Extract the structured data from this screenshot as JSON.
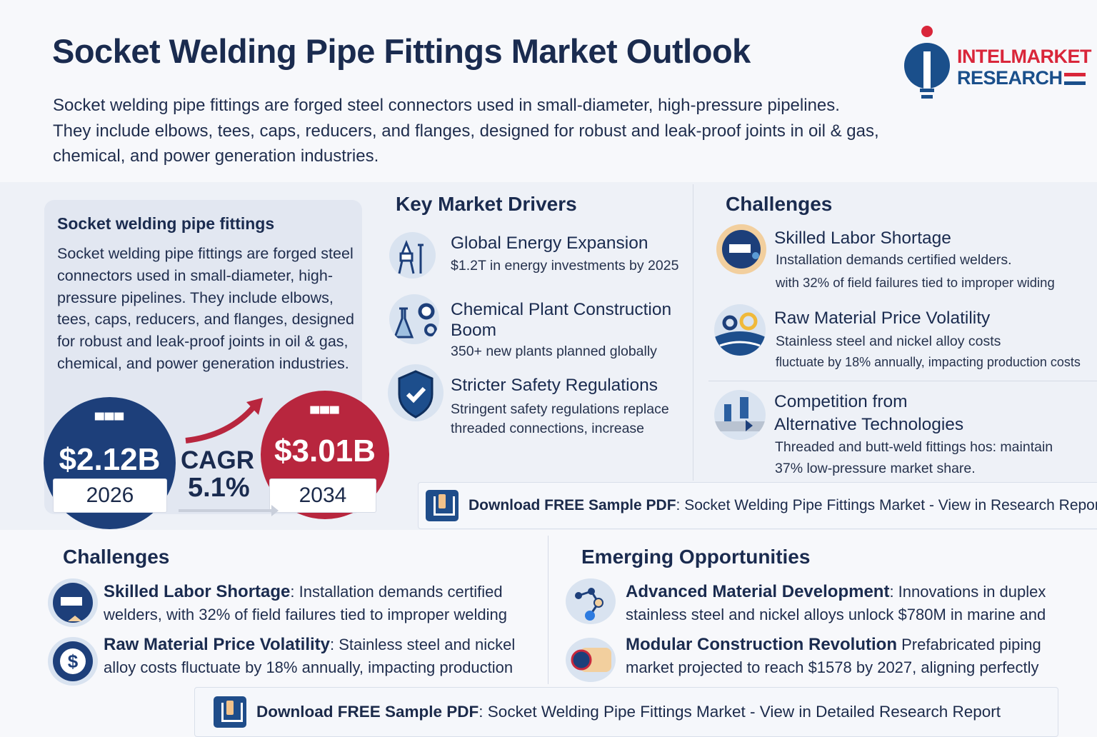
{
  "header": {
    "title": "Socket Welding Pipe Fittings Market Outlook",
    "description": "Socket welding pipe fittings are forged steel connectors used in small-diameter, high-pressure pipelines. They include elbows, tees, caps, reducers, and flanges, designed for robust and leak-proof joints in oil & gas, chemical, and power generation industries."
  },
  "logo": {
    "line1": "INTELMARKET",
    "line2": "RESEARCH",
    "colors": {
      "blue": "#1a4f8b",
      "red": "#d9263a"
    }
  },
  "summary_card": {
    "title": "Socket welding pipe fittings",
    "text": "Socket welding pipe fittings are forged steel connectors used in small-diameter, high-pressure pipelines. They include elbows, tees, caps, reducers, and flanges, designed for robust and leak-proof joints in oil & gas, chemical, and power generation industries."
  },
  "market_size": {
    "start": {
      "value": "$2.12B",
      "year": "2026",
      "color": "#1d3f7a"
    },
    "end": {
      "value": "$3.01B",
      "year": "2034",
      "color": "#b8263e"
    },
    "cagr_label": "CAGR",
    "cagr_value": "5.1%"
  },
  "drivers": {
    "heading": "Key Market Drivers",
    "items": [
      {
        "icon": "oil-rig-icon",
        "title": "Global Energy Expansion",
        "desc": "$1.2T in energy investments by 2025"
      },
      {
        "icon": "chemical-flask-gears-icon",
        "title": "Chemical Plant Construction Boom",
        "desc": "350+ new plants planned globally"
      },
      {
        "icon": "shield-check-icon",
        "title": "Stricter Safety Regulations",
        "desc1": "Stringent safety regulations replace",
        "desc2": "threaded connections, increase"
      }
    ]
  },
  "challenges_top": {
    "heading": "Challenges",
    "items": [
      {
        "icon": "welder-mask-icon",
        "title": "Skilled Labor Shortage",
        "desc1": "Installation demands certified welders.",
        "desc2": "with 32% of field failures tied to improper widing"
      },
      {
        "icon": "price-volatility-icon",
        "title": "Raw Material Price Volatility",
        "desc1": "Stainless steel and nickel alloy costs",
        "desc2": "fluctuate by 18% annually, impacting production costs"
      },
      {
        "icon": "pipes-icon",
        "title1": "Competition from",
        "title2": "Alternative Technologies",
        "desc1": "Threaded and butt-weld fittings hos: maintain",
        "desc2": "37% low-pressure market share."
      }
    ]
  },
  "download_top": {
    "bold": "Download FREE Sample PDF",
    "rest": ": Socket Welding Pipe Fittings Market - View in Research Report"
  },
  "challenges_bottom": {
    "heading": "Challenges",
    "items": [
      {
        "icon": "welder-mask-icon",
        "title": "Skilled Labor Shortage",
        "desc": ": Installation demands certified welders, with 32% of field failures tied to improper welding"
      },
      {
        "icon": "dollar-cycle-icon",
        "title": "Raw Material Price Volatility",
        "desc": ": Stainless steel and nickel alloy costs fluctuate by 18% annually, impacting production"
      }
    ]
  },
  "opportunities": {
    "heading": "Emerging Opportunities",
    "items": [
      {
        "icon": "molecule-icon",
        "title": "Advanced Material Development",
        "desc": ": Innovations in duplex stainless steel and nickel alloys unlock $780M in marine and"
      },
      {
        "icon": "pipe-module-icon",
        "title": "Modular Construction Revolution",
        "desc": " Prefabricated piping market projected to reach $1578 by 2027, aligning perfectly"
      }
    ]
  },
  "download_bottom": {
    "bold": "Download FREE Sample PDF",
    "rest": ": Socket Welding Pipe Fittings Market -  View in Detailed Research Report"
  }
}
